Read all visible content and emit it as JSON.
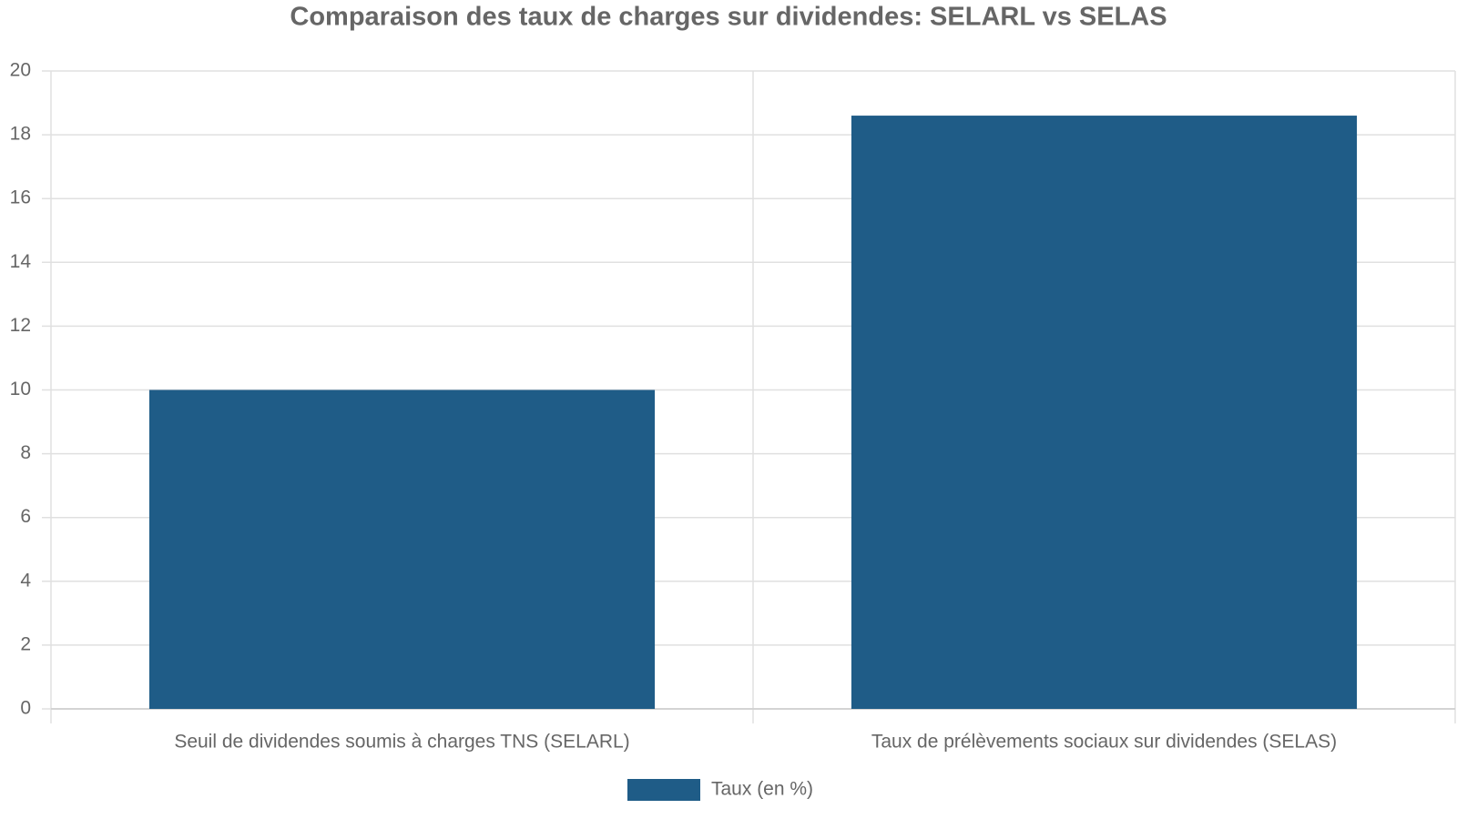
{
  "chart_data": {
    "type": "bar",
    "title": "Comparaison des taux de charges sur dividendes: SELARL vs SELAS",
    "categories": [
      "Seuil de dividendes soumis à charges TNS (SELARL)",
      "Taux de prélèvements sociaux sur dividendes (SELAS)"
    ],
    "series": [
      {
        "name": "Taux (en %)",
        "color": "#1f5c87",
        "values": [
          10,
          18.6
        ]
      }
    ],
    "ylim": [
      0,
      20
    ],
    "yticks": [
      0,
      2,
      4,
      6,
      8,
      10,
      12,
      14,
      16,
      18,
      20
    ],
    "grid": true,
    "legend": "bottom"
  }
}
